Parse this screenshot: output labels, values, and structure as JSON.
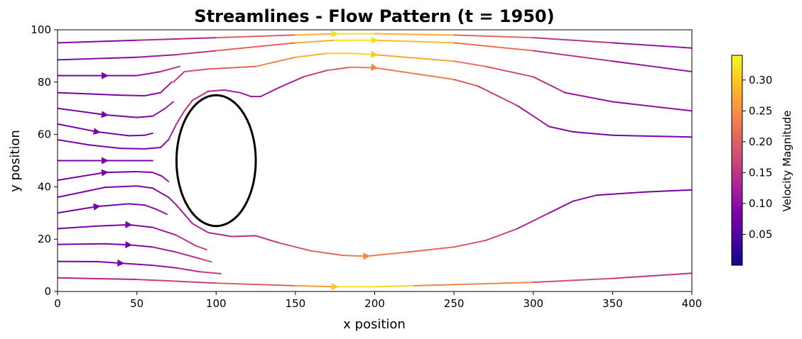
{
  "chart_data": {
    "type": "streamline",
    "title": "Streamlines - Flow Pattern (t = 1950)",
    "xlabel": "x position",
    "ylabel": "y position",
    "xlim": [
      0,
      400
    ],
    "ylim": [
      0,
      100
    ],
    "xticks": [
      "0",
      "50",
      "100",
      "150",
      "200",
      "250",
      "300",
      "350",
      "400"
    ],
    "yticks": [
      "0",
      "20",
      "40",
      "60",
      "80",
      "100"
    ],
    "grid": false,
    "colormap": "plasma",
    "colorbar": {
      "label": "Velocity Magnitude",
      "ticks": [
        "0.05",
        "0.10",
        "0.15",
        "0.20",
        "0.25",
        "0.30"
      ],
      "range": [
        0.0,
        0.34
      ]
    },
    "obstacle": {
      "shape": "ellipse",
      "center": [
        100,
        50
      ],
      "radius_x": 25,
      "radius_y": 25
    },
    "streamlines": [
      {
        "points": [
          [
            0,
            95
          ],
          [
            50,
            96
          ],
          [
            100,
            97
          ],
          [
            150,
            98
          ],
          [
            175,
            98.5
          ],
          [
            200,
            98.5
          ],
          [
            250,
            98
          ],
          [
            300,
            97
          ],
          [
            350,
            95
          ],
          [
            400,
            93
          ]
        ],
        "speeds": [
          0.08,
          0.1,
          0.16,
          0.24,
          0.32,
          0.32,
          0.24,
          0.18,
          0.12,
          0.1
        ],
        "arrows": [
          4
        ]
      },
      {
        "points": [
          [
            0,
            88.5
          ],
          [
            50,
            89.5
          ],
          [
            75,
            90.5
          ],
          [
            100,
            92
          ],
          [
            150,
            95
          ],
          [
            175,
            96
          ],
          [
            200,
            96
          ],
          [
            250,
            95
          ],
          [
            300,
            92
          ],
          [
            350,
            88
          ],
          [
            400,
            84
          ]
        ],
        "speeds": [
          0.08,
          0.1,
          0.13,
          0.17,
          0.24,
          0.32,
          0.32,
          0.26,
          0.18,
          0.12,
          0.1
        ],
        "arrows": [
          6
        ]
      },
      {
        "points": [
          [
            0,
            82.5
          ],
          [
            30,
            82.5
          ],
          [
            50,
            82.5
          ],
          [
            65,
            84
          ],
          [
            77,
            86
          ]
        ],
        "speeds": [
          0.08,
          0.08,
          0.1,
          0.13,
          0.16
        ],
        "arrows": [
          1
        ]
      },
      {
        "points": [
          [
            0,
            76
          ],
          [
            40,
            75
          ],
          [
            55,
            74.8
          ],
          [
            65,
            76
          ],
          [
            72,
            80
          ]
        ],
        "speeds": [
          0.08,
          0.08,
          0.09,
          0.1,
          0.12
        ],
        "arrows": []
      },
      {
        "points": [
          [
            73,
            80
          ],
          [
            80,
            84
          ],
          [
            95,
            85
          ],
          [
            110,
            85.5
          ],
          [
            125,
            86
          ],
          [
            150,
            89.5
          ],
          [
            170,
            91
          ],
          [
            185,
            91
          ],
          [
            200,
            90.5
          ],
          [
            250,
            88
          ],
          [
            270,
            86
          ],
          [
            300,
            82
          ],
          [
            320,
            76
          ],
          [
            350,
            72.5
          ],
          [
            400,
            69
          ]
        ],
        "speeds": [
          0.14,
          0.17,
          0.19,
          0.2,
          0.22,
          0.26,
          0.3,
          0.32,
          0.3,
          0.24,
          0.2,
          0.16,
          0.12,
          0.1,
          0.1
        ],
        "arrows": [
          8
        ]
      },
      {
        "points": [
          [
            0,
            70
          ],
          [
            30,
            67.5
          ],
          [
            50,
            66.5
          ],
          [
            60,
            67
          ],
          [
            68,
            70
          ],
          [
            73,
            72.5
          ]
        ],
        "speeds": [
          0.08,
          0.08,
          0.08,
          0.09,
          0.11,
          0.14
        ],
        "arrows": [
          1
        ]
      },
      {
        "points": [
          [
            0,
            64
          ],
          [
            25,
            61
          ],
          [
            45,
            59.5
          ],
          [
            55,
            59.7
          ],
          [
            60,
            60.5
          ]
        ],
        "speeds": [
          0.08,
          0.08,
          0.08,
          0.08,
          0.09
        ],
        "arrows": [
          1
        ]
      },
      {
        "points": [
          [
            0,
            58
          ],
          [
            20,
            56
          ],
          [
            40,
            54.7
          ],
          [
            55,
            54.5
          ],
          [
            65,
            55
          ],
          [
            70,
            58
          ],
          [
            75,
            64
          ],
          [
            80,
            69
          ],
          [
            85,
            73
          ],
          [
            95,
            76.5
          ],
          [
            105,
            77
          ],
          [
            115,
            76
          ],
          [
            122,
            74.5
          ],
          [
            128,
            74.5
          ],
          [
            140,
            78
          ],
          [
            155,
            82
          ],
          [
            170,
            84.5
          ],
          [
            185,
            85.7
          ],
          [
            200,
            85.5
          ],
          [
            250,
            81
          ],
          [
            265,
            78.5
          ],
          [
            290,
            71
          ],
          [
            310,
            63
          ],
          [
            325,
            61
          ],
          [
            350,
            59.7
          ],
          [
            400,
            59
          ]
        ],
        "speeds": [
          0.08,
          0.08,
          0.08,
          0.08,
          0.09,
          0.11,
          0.14,
          0.15,
          0.15,
          0.14,
          0.13,
          0.12,
          0.11,
          0.11,
          0.12,
          0.14,
          0.18,
          0.22,
          0.24,
          0.22,
          0.18,
          0.14,
          0.1,
          0.09,
          0.08,
          0.08
        ],
        "arrows": [
          18
        ]
      },
      {
        "points": [
          [
            0,
            50
          ],
          [
            30,
            50
          ],
          [
            60,
            50
          ]
        ],
        "speeds": [
          0.08,
          0.08,
          0.08
        ],
        "arrows": [
          1
        ]
      },
      {
        "points": [
          [
            0,
            42.5
          ],
          [
            30,
            45.5
          ],
          [
            50,
            45.8
          ],
          [
            60,
            45.5
          ],
          [
            66,
            44
          ],
          [
            70,
            42
          ]
        ],
        "speeds": [
          0.08,
          0.08,
          0.08,
          0.09,
          0.1,
          0.11
        ],
        "arrows": [
          1
        ]
      },
      {
        "points": [
          [
            0,
            36
          ],
          [
            30,
            39.8
          ],
          [
            50,
            40.3
          ],
          [
            60,
            39.5
          ],
          [
            70,
            36
          ],
          [
            75,
            33
          ],
          [
            85,
            26
          ],
          [
            95,
            22.5
          ],
          [
            110,
            21
          ],
          [
            125,
            21.3
          ],
          [
            140,
            18.5
          ],
          [
            160,
            15.5
          ],
          [
            180,
            13.8
          ],
          [
            195,
            13.5
          ],
          [
            220,
            15
          ],
          [
            250,
            17
          ],
          [
            270,
            19.5
          ],
          [
            290,
            24
          ],
          [
            310,
            30
          ],
          [
            325,
            34.5
          ],
          [
            340,
            36.8
          ],
          [
            370,
            38
          ],
          [
            400,
            38.8
          ]
        ],
        "speeds": [
          0.08,
          0.08,
          0.08,
          0.09,
          0.1,
          0.11,
          0.13,
          0.14,
          0.14,
          0.14,
          0.16,
          0.2,
          0.22,
          0.24,
          0.22,
          0.2,
          0.18,
          0.15,
          0.12,
          0.1,
          0.09,
          0.08,
          0.08
        ],
        "arrows": [
          13
        ]
      },
      {
        "points": [
          [
            0,
            30
          ],
          [
            25,
            32.5
          ],
          [
            45,
            33.5
          ],
          [
            55,
            33
          ],
          [
            62,
            31.5
          ],
          [
            69,
            29.5
          ]
        ],
        "speeds": [
          0.08,
          0.08,
          0.08,
          0.09,
          0.1,
          0.12
        ],
        "arrows": [
          1
        ]
      },
      {
        "points": [
          [
            0,
            24
          ],
          [
            25,
            25
          ],
          [
            45,
            25.5
          ],
          [
            60,
            24.5
          ],
          [
            75,
            21.5
          ],
          [
            87,
            17.5
          ],
          [
            94,
            16
          ]
        ],
        "speeds": [
          0.08,
          0.08,
          0.08,
          0.1,
          0.13,
          0.16,
          0.18
        ],
        "arrows": [
          2
        ]
      },
      {
        "points": [
          [
            0,
            18
          ],
          [
            30,
            18.2
          ],
          [
            45,
            17.8
          ],
          [
            60,
            17
          ],
          [
            75,
            15
          ],
          [
            90,
            12.5
          ],
          [
            97,
            11.3
          ]
        ],
        "speeds": [
          0.08,
          0.08,
          0.08,
          0.1,
          0.13,
          0.16,
          0.18
        ],
        "arrows": [
          2
        ]
      },
      {
        "points": [
          [
            0,
            11.5
          ],
          [
            25,
            11.4
          ],
          [
            40,
            10.8
          ],
          [
            60,
            10
          ],
          [
            75,
            9
          ],
          [
            90,
            7.5
          ],
          [
            103,
            6.8
          ]
        ],
        "speeds": [
          0.08,
          0.08,
          0.08,
          0.1,
          0.12,
          0.15,
          0.17
        ],
        "arrows": [
          2
        ]
      },
      {
        "points": [
          [
            0,
            5.2
          ],
          [
            50,
            4.6
          ],
          [
            100,
            3.2
          ],
          [
            150,
            2.2
          ],
          [
            175,
            1.8
          ],
          [
            200,
            1.8
          ],
          [
            225,
            2.2
          ],
          [
            300,
            3.5
          ],
          [
            350,
            5
          ],
          [
            400,
            7
          ]
        ],
        "speeds": [
          0.12,
          0.14,
          0.18,
          0.22,
          0.3,
          0.34,
          0.28,
          0.2,
          0.16,
          0.14
        ],
        "arrows": [
          4
        ]
      }
    ]
  }
}
